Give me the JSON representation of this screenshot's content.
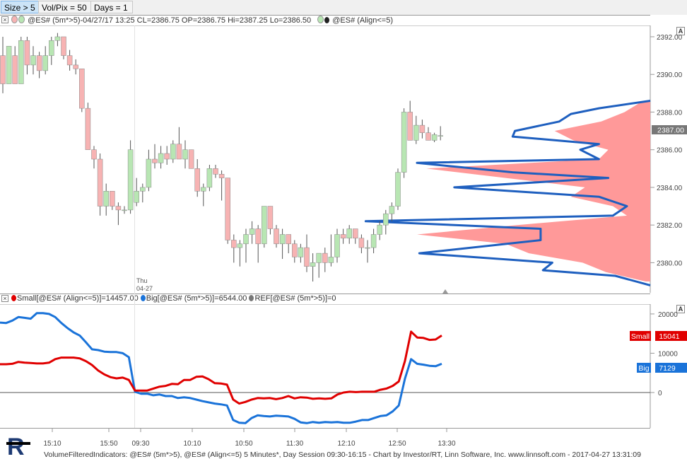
{
  "toolbar": {
    "buttons": [
      "Size > 5",
      "Vol/Pix = 50",
      "Days = 1"
    ]
  },
  "price_panel": {
    "header_text": "@ES# (5m*>5)-04/27/17 13:25 CL=2386.75 OP=2386.75 Hi=2387.25 Lo=2386.50",
    "header_text2": "@ES# (Align<=5)",
    "current_price_label": "2387.00",
    "date_label_day": "Thu",
    "date_label_date": "04-27",
    "button_a": "A"
  },
  "volume_panel": {
    "header_small": "Small[@ES# (Align<=5)]=14457.00",
    "header_big": "Big[@ES# (5m*>5)]=6544.00",
    "header_ref": "REF[@ES# (5m*>5)]=0",
    "small_tag": "Small",
    "small_value": "15041",
    "big_tag": "Big",
    "big_value": "7129",
    "button_a": "A"
  },
  "time_axis": [
    "15:10",
    "15:50",
    "09:30",
    "10:10",
    "10:50",
    "11:30",
    "12:10",
    "12:50",
    "13:30"
  ],
  "footer": "VolumeFilteredIndicators: @ES# (5m*>5), @ES# (Align<=5) 5 Minutes*, Day Session 09:30-16:15 - Chart by Investor/RT, Linn Software, Inc. www.linnsoft.com - 2017-04-27 13:31:09",
  "colors": {
    "up_candle": "#b8e6b3",
    "down_candle": "#f7b3b3",
    "small_line": "#e00000",
    "big_line": "#1a73d9",
    "profile_fill": "#ff9999",
    "profile_outline": "#1e5fbf"
  },
  "chart_data": [
    {
      "type": "candlestick",
      "y_axis_ticks": [
        2380.0,
        2382.0,
        2384.0,
        2386.0,
        2388.0,
        2390.0,
        2392.0
      ],
      "ylim": [
        2378.4,
        2392.6
      ],
      "x_tick_labels": [
        "15:10",
        "15:50",
        "09:30",
        "10:10",
        "10:50",
        "11:30",
        "12:10",
        "12:50",
        "13:30"
      ],
      "ohlc": [
        [
          2391.0,
          2392.0,
          2389.0,
          2389.5
        ],
        [
          2389.5,
          2391.5,
          2389.5,
          2391.5
        ],
        [
          2391.0,
          2391.5,
          2389.5,
          2389.5
        ],
        [
          2389.5,
          2392.0,
          2389.5,
          2391.8
        ],
        [
          2391.8,
          2392.0,
          2390.0,
          2390.5
        ],
        [
          2390.5,
          2391.5,
          2390.0,
          2391.0
        ],
        [
          2391.0,
          2391.2,
          2389.8,
          2390.2
        ],
        [
          2390.2,
          2391.5,
          2390.0,
          2391.0
        ],
        [
          2391.0,
          2392.0,
          2390.5,
          2391.8
        ],
        [
          2391.8,
          2392.2,
          2391.5,
          2392.0
        ],
        [
          2392.0,
          2392.0,
          2390.8,
          2391.0
        ],
        [
          2391.0,
          2391.3,
          2390.2,
          2390.5
        ],
        [
          2390.5,
          2390.8,
          2390.0,
          2390.3
        ],
        [
          2390.3,
          2390.3,
          2388.0,
          2388.2
        ],
        [
          2388.2,
          2388.5,
          2386.0,
          2386.0
        ],
        [
          2386.0,
          2386.2,
          2385.0,
          2385.5
        ],
        [
          2385.5,
          2385.8,
          2382.5,
          2383.0
        ],
        [
          2383.0,
          2384.2,
          2382.5,
          2383.8
        ],
        [
          2383.8,
          2383.8,
          2382.8,
          2383.0
        ],
        [
          2383.0,
          2383.2,
          2382.0,
          2382.8
        ],
        [
          2382.8,
          2383.0,
          2382.6,
          2382.8
        ],
        [
          2382.8,
          2386.5,
          2382.6,
          2386.0
        ],
        [
          2383.2,
          2384.5,
          2383.0,
          2383.8
        ],
        [
          2383.8,
          2384.2,
          2383.2,
          2384.0
        ],
        [
          2384.0,
          2386.0,
          2383.8,
          2385.5
        ],
        [
          2385.5,
          2386.3,
          2385.0,
          2385.3
        ],
        [
          2385.3,
          2386.2,
          2385.0,
          2385.8
        ],
        [
          2385.8,
          2386.2,
          2385.2,
          2385.5
        ],
        [
          2385.5,
          2386.5,
          2385.3,
          2386.3
        ],
        [
          2386.3,
          2387.2,
          2385.5,
          2385.5
        ],
        [
          2385.5,
          2386.5,
          2385.0,
          2386.0
        ],
        [
          2386.0,
          2386.0,
          2385.0,
          2385.0
        ],
        [
          2385.0,
          2385.5,
          2383.5,
          2383.8
        ],
        [
          2383.8,
          2384.2,
          2383.0,
          2384.0
        ],
        [
          2384.0,
          2385.2,
          2383.8,
          2385.0
        ],
        [
          2385.0,
          2385.2,
          2384.5,
          2384.7
        ],
        [
          2384.7,
          2384.9,
          2383.3,
          2384.5
        ],
        [
          2384.5,
          2384.5,
          2381.0,
          2381.2
        ],
        [
          2381.2,
          2381.5,
          2380.0,
          2380.8
        ],
        [
          2380.8,
          2381.2,
          2379.8,
          2381.0
        ],
        [
          2381.0,
          2381.8,
          2380.0,
          2381.5
        ],
        [
          2381.5,
          2382.2,
          2381.0,
          2381.8
        ],
        [
          2381.8,
          2382.0,
          2380.0,
          2381.0
        ],
        [
          2381.0,
          2383.0,
          2380.8,
          2383.0
        ],
        [
          2383.0,
          2383.0,
          2381.5,
          2381.8
        ],
        [
          2381.8,
          2382.0,
          2380.8,
          2381.0
        ],
        [
          2381.0,
          2381.8,
          2380.2,
          2381.5
        ],
        [
          2381.5,
          2381.5,
          2380.5,
          2381.0
        ],
        [
          2381.0,
          2381.2,
          2380.0,
          2380.3
        ],
        [
          2380.3,
          2381.0,
          2380.0,
          2380.8
        ],
        [
          2380.8,
          2381.5,
          2379.5,
          2379.8
        ],
        [
          2379.8,
          2380.5,
          2379.0,
          2380.0
        ],
        [
          2380.0,
          2380.5,
          2379.2,
          2380.5
        ],
        [
          2380.5,
          2380.8,
          2379.5,
          2380.0
        ],
        [
          2380.0,
          2381.5,
          2379.8,
          2380.3
        ],
        [
          2380.3,
          2381.8,
          2380.0,
          2381.5
        ],
        [
          2381.5,
          2381.8,
          2381.0,
          2381.3
        ],
        [
          2381.3,
          2382.0,
          2381.0,
          2381.8
        ],
        [
          2381.8,
          2381.8,
          2381.0,
          2381.3
        ],
        [
          2381.3,
          2381.5,
          2380.5,
          2380.8
        ],
        [
          2380.8,
          2381.2,
          2380.0,
          2380.8
        ],
        [
          2380.8,
          2381.8,
          2380.5,
          2381.5
        ],
        [
          2381.5,
          2382.2,
          2381.2,
          2382.0
        ],
        [
          2382.0,
          2382.8,
          2381.5,
          2382.6
        ],
        [
          2382.6,
          2383.2,
          2382.2,
          2383.0
        ],
        [
          2383.0,
          2385.0,
          2382.8,
          2384.8
        ],
        [
          2384.8,
          2388.2,
          2384.5,
          2388.0
        ],
        [
          2388.0,
          2388.6,
          2386.5,
          2386.5
        ],
        [
          2386.5,
          2387.8,
          2386.3,
          2387.3
        ],
        [
          2387.3,
          2387.6,
          2386.6,
          2386.9
        ],
        [
          2386.9,
          2387.2,
          2386.5,
          2386.5
        ],
        [
          2386.5,
          2386.9,
          2386.4,
          2386.8
        ],
        [
          2386.75,
          2387.25,
          2386.5,
          2386.75
        ]
      ],
      "volume_profile_small": [
        [
          2388.6,
          0.03
        ],
        [
          2388.0,
          0.11
        ],
        [
          2387.5,
          0.21
        ],
        [
          2387.0,
          0.41
        ],
        [
          2386.5,
          0.33
        ],
        [
          2386.0,
          0.18
        ],
        [
          2385.5,
          0.22
        ],
        [
          2385.0,
          0.96
        ],
        [
          2384.5,
          0.62
        ],
        [
          2384.0,
          0.28
        ],
        [
          2383.5,
          0.34
        ],
        [
          2383.0,
          0.16
        ],
        [
          2382.5,
          0.1
        ],
        [
          2382.0,
          0.57
        ],
        [
          2381.5,
          1.0
        ],
        [
          2381.0,
          0.62
        ],
        [
          2380.5,
          0.52
        ],
        [
          2380.0,
          0.29
        ],
        [
          2379.5,
          0.19
        ],
        [
          2379.0,
          0.02
        ]
      ],
      "volume_profile_big": [
        [
          2388.6,
          0.0
        ],
        [
          2388.2,
          0.22
        ],
        [
          2387.9,
          0.34
        ],
        [
          2387.5,
          0.39
        ],
        [
          2387.0,
          0.58
        ],
        [
          2386.7,
          0.59
        ],
        [
          2386.3,
          0.22
        ],
        [
          2386.0,
          0.3
        ],
        [
          2385.5,
          0.22
        ],
        [
          2385.3,
          1.0
        ],
        [
          2384.8,
          0.59
        ],
        [
          2384.5,
          0.18
        ],
        [
          2384.0,
          0.84
        ],
        [
          2383.5,
          0.22
        ],
        [
          2383.0,
          0.1
        ],
        [
          2382.5,
          0.16
        ],
        [
          2382.2,
          1.22
        ],
        [
          2381.8,
          0.47
        ],
        [
          2381.2,
          0.47
        ],
        [
          2380.5,
          0.99
        ],
        [
          2380.0,
          0.42
        ],
        [
          2379.6,
          0.46
        ],
        [
          2379.3,
          0.15
        ],
        [
          2378.8,
          0.0
        ]
      ]
    },
    {
      "type": "line",
      "y_axis_ticks": [
        0,
        10000,
        20000
      ],
      "ylim": [
        -9000,
        22500
      ],
      "series": [
        {
          "name": "Small",
          "values": [
            7200,
            7200,
            7300,
            7800,
            7600,
            7500,
            7400,
            7400,
            7600,
            8500,
            8900,
            8900,
            8900,
            8700,
            8000,
            7000,
            5600,
            4600,
            3900,
            3600,
            3800,
            3200,
            500,
            500,
            500,
            1000,
            1500,
            1700,
            2200,
            2100,
            3200,
            3200,
            4000,
            4100,
            3400,
            2400,
            2300,
            2000,
            -1800,
            -2800,
            -2400,
            -1800,
            -1400,
            -1500,
            -1400,
            -1700,
            -1400,
            -900,
            -1500,
            -1200,
            -1300,
            -1600,
            -1500,
            -1600,
            -1500,
            -500,
            0,
            200,
            100,
            200,
            200,
            200,
            700,
            1000,
            1700,
            2800,
            8000,
            15500,
            14000,
            13900,
            13400,
            13500,
            14500
          ]
        },
        {
          "name": "Big",
          "values": [
            17800,
            17700,
            18300,
            19200,
            19000,
            18800,
            20200,
            20200,
            20000,
            19200,
            17700,
            16400,
            15300,
            14500,
            12800,
            11000,
            10800,
            10400,
            10300,
            10300,
            10000,
            9000,
            200,
            -300,
            -300,
            -700,
            -500,
            -900,
            -900,
            -1400,
            -1200,
            -1400,
            -1800,
            -2200,
            -2500,
            -2800,
            -3000,
            -3300,
            -7000,
            -7700,
            -7800,
            -6500,
            -5800,
            -6000,
            -6100,
            -5900,
            -6000,
            -6100,
            -6700,
            -7600,
            -7800,
            -7500,
            -7700,
            -7500,
            -7600,
            -7500,
            -7700,
            -7700,
            -7400,
            -7000,
            -7000,
            -6500,
            -6000,
            -5800,
            -4800,
            -3300,
            3500,
            8500,
            7300,
            7100,
            6800,
            6700,
            7300
          ]
        }
      ],
      "reference_line": 0
    }
  ]
}
